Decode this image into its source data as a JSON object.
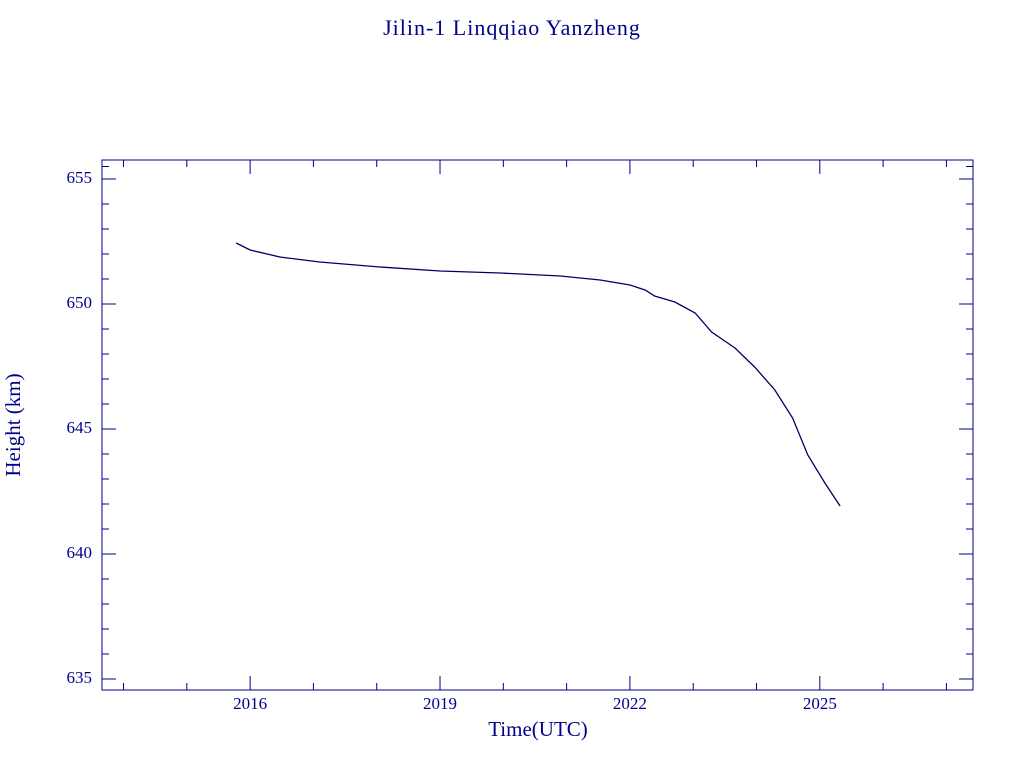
{
  "chart_data": {
    "type": "line",
    "title": "Jilin-1 Linqqiao Yanzheng",
    "x_label": "Time(UTC)",
    "y_label": "Height (km)",
    "x": [
      2015.78,
      2016.0,
      2016.47,
      2017.1,
      2018.05,
      2019.0,
      2019.95,
      2020.9,
      2021.53,
      2022.0,
      2022.24,
      2022.39,
      2022.71,
      2023.03,
      2023.29,
      2023.66,
      2023.97,
      2024.29,
      2024.57,
      2024.81,
      2025.08,
      2025.32
    ],
    "series": [
      {
        "name": "Height",
        "color": "#000066",
        "values": [
          652.44,
          652.16,
          651.88,
          651.68,
          651.48,
          651.32,
          651.24,
          651.12,
          650.96,
          650.76,
          650.56,
          650.32,
          650.08,
          649.64,
          648.88,
          648.24,
          647.48,
          646.56,
          645.44,
          643.96,
          642.84,
          641.92
        ]
      }
    ],
    "xlim": [
      2013.66,
      2027.42
    ],
    "xticks": [
      2016,
      2019,
      2022,
      2025
    ],
    "xminorticks": [
      2014,
      2015,
      2017,
      2018,
      2020,
      2021,
      2023,
      2024,
      2026,
      2027
    ],
    "ylim": [
      634.56,
      655.76
    ],
    "yticks": [
      635,
      640,
      645,
      650,
      655
    ],
    "yminorticks": [
      636,
      637,
      638,
      639,
      641,
      642,
      643,
      644,
      646,
      647,
      648,
      649,
      651,
      652,
      653,
      654,
      655.5
    ],
    "axis_color": "#00008b",
    "grid": false
  }
}
